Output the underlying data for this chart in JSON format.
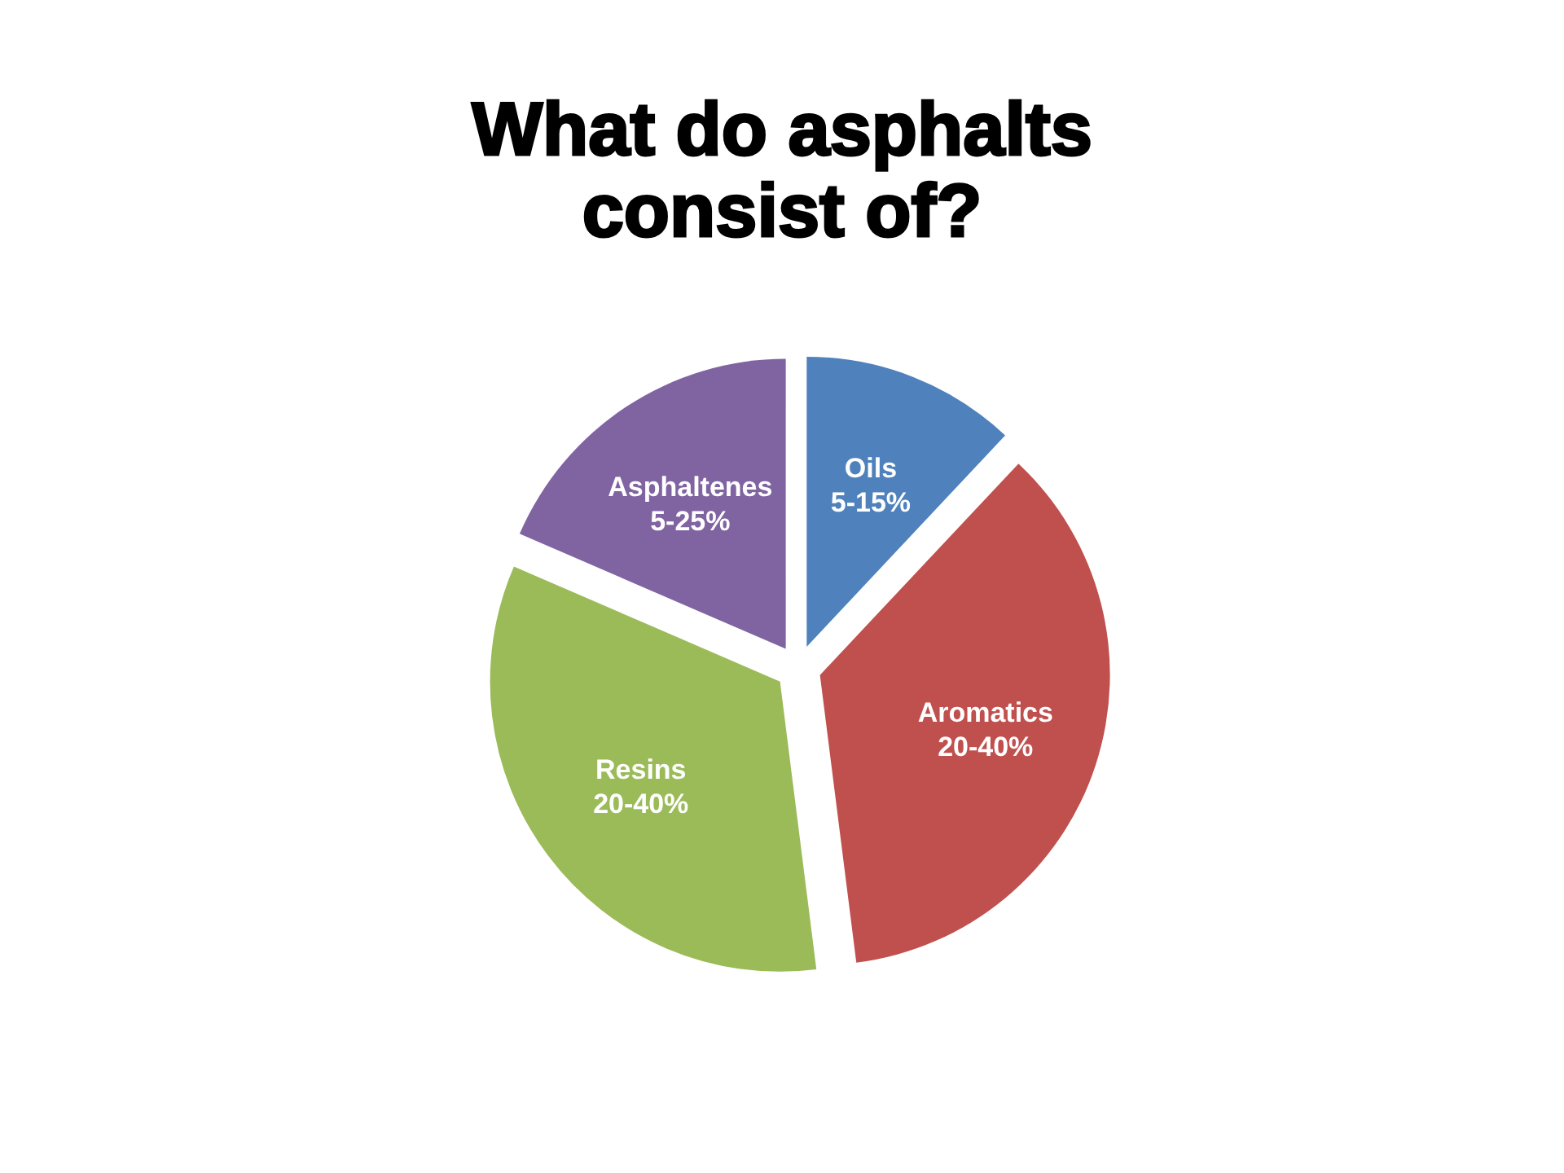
{
  "chart_data": {
    "type": "pie",
    "title": "What do asphalts consist of?",
    "categories": [
      "Oils 5-15%",
      "Aromatics 20-40%",
      "Resins 20-40%",
      "Asphaltenes 5-25%"
    ],
    "values": [
      12,
      36,
      33.5,
      18.5
    ],
    "colors": [
      "#4f81bd",
      "#c0504d",
      "#9bbb59",
      "#8064a2"
    ]
  }
}
